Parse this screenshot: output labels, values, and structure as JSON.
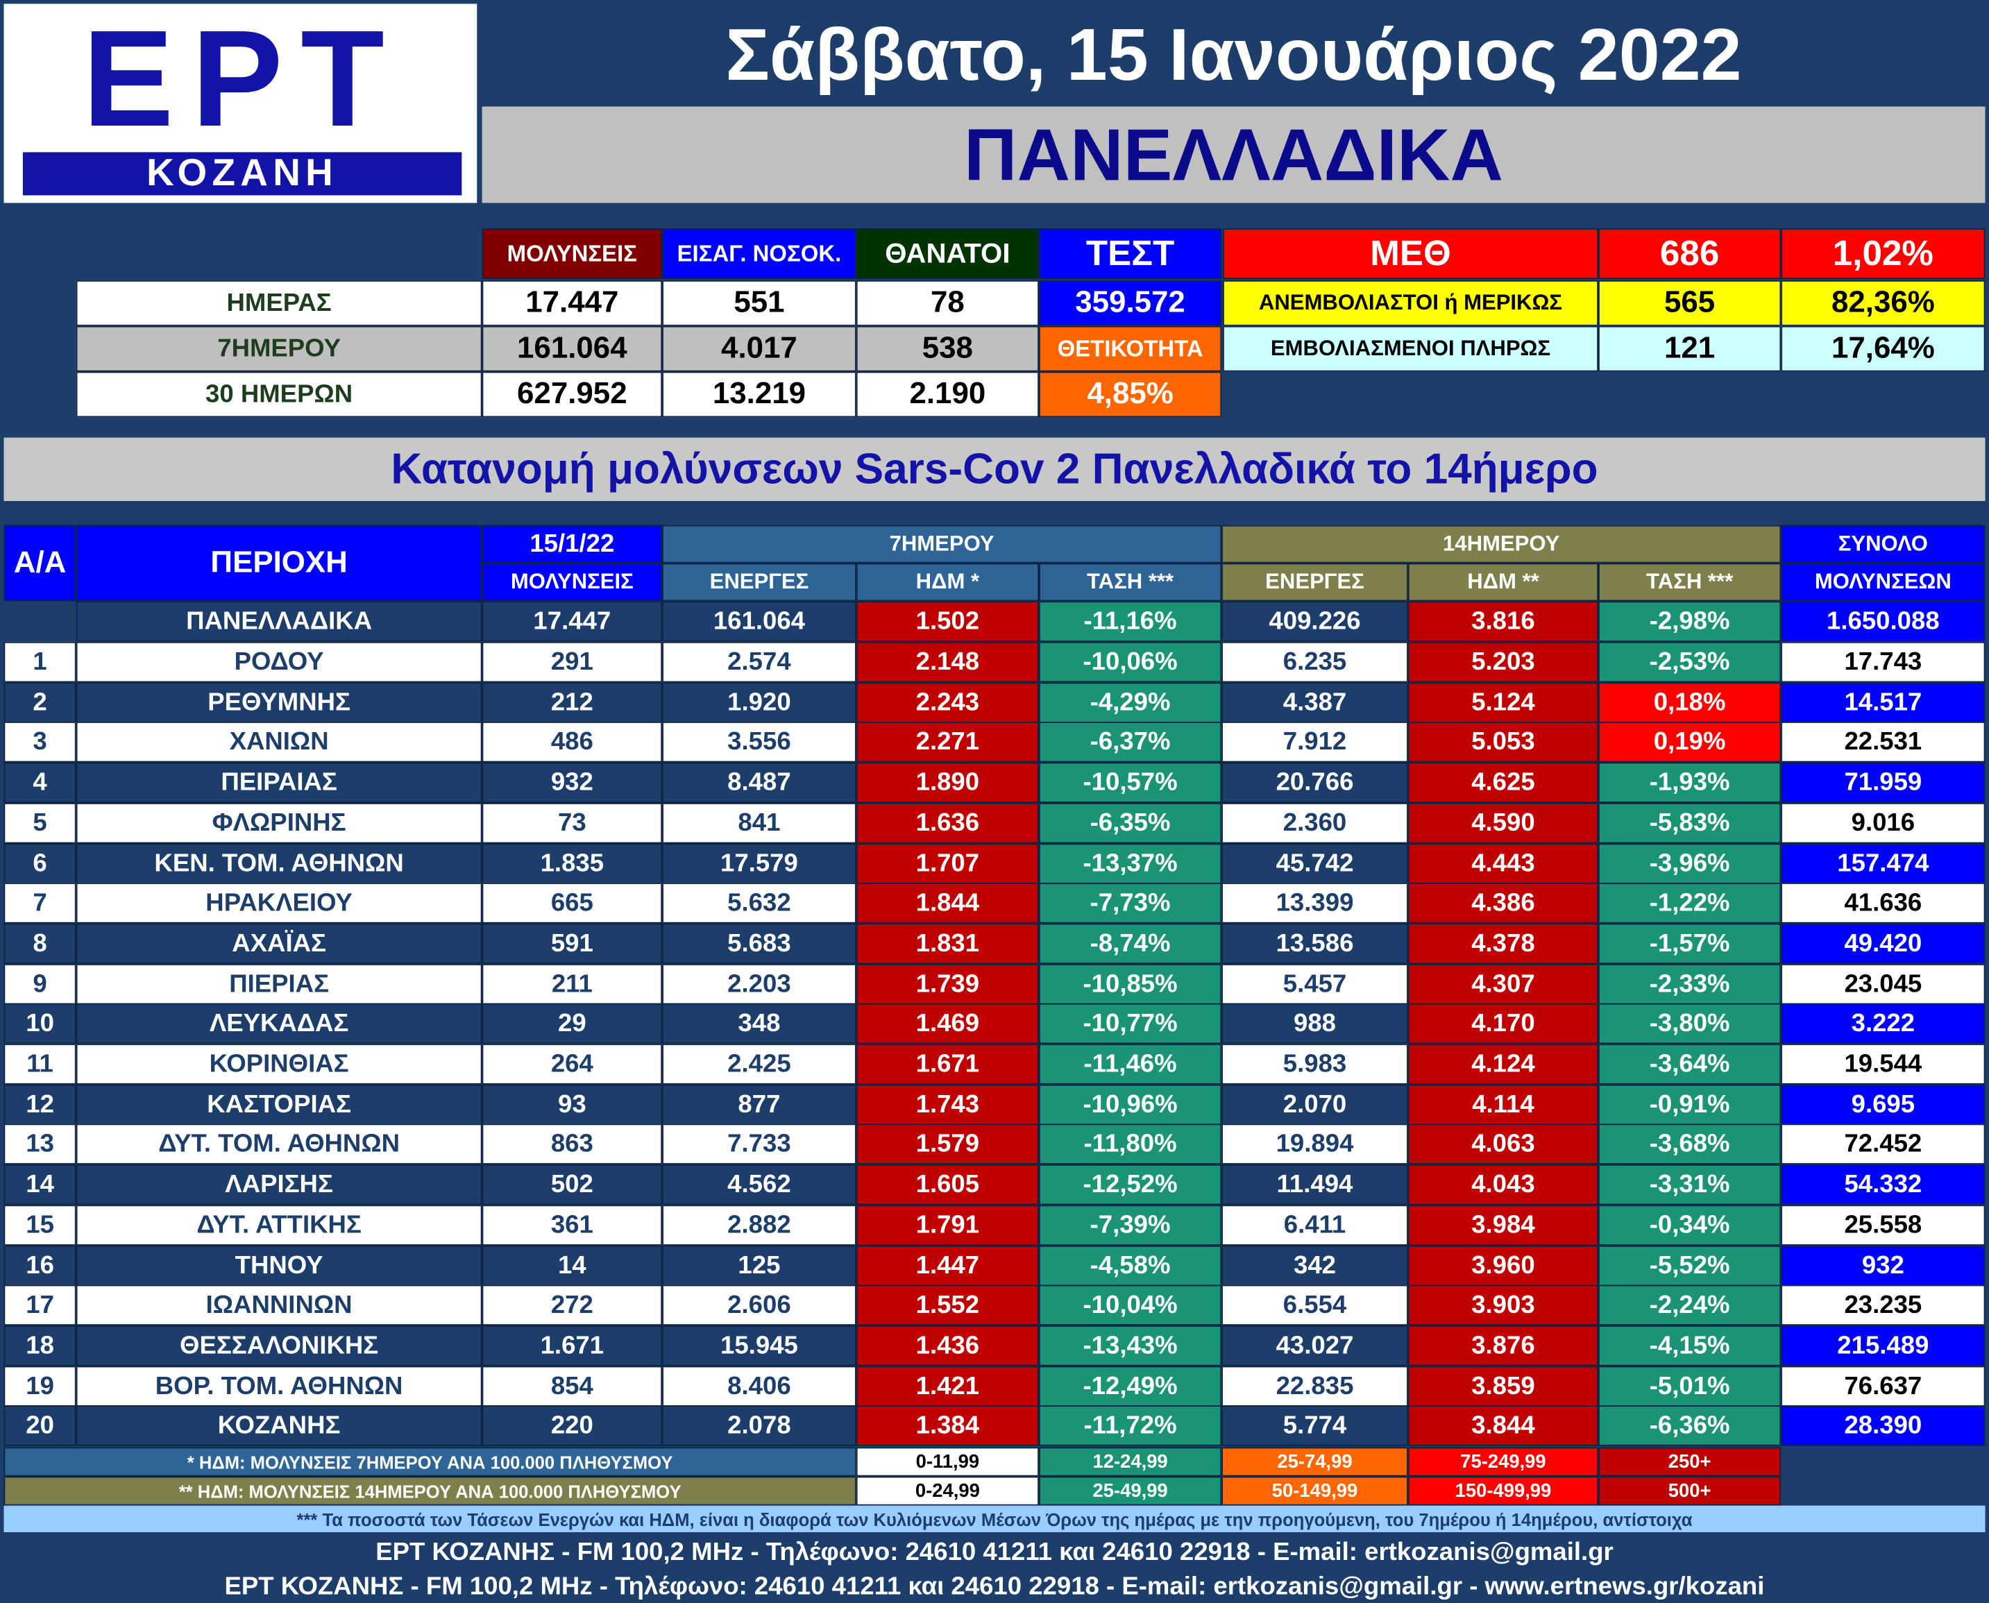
{
  "logo": {
    "name": "ΕΡΤ",
    "sub": "ΚΟΖΑΝΗ"
  },
  "date": "Σάββατο, 15 Ιανουάριος 2022",
  "region_title": "ΠΑΝΕΛΛΑΔΙΚΑ",
  "summary": {
    "headers": {
      "infections": "ΜΟΛΥΝΣΕΙΣ",
      "admissions": "ΕΙΣΑΓ. ΝΟΣΟΚ.",
      "deaths": "ΘΑΝΑΤΟΙ",
      "tests": "ΤΕΣΤ"
    },
    "rows": [
      {
        "label": "ΗΜΕΡΑΣ",
        "infections": "17.447",
        "admissions": "551",
        "deaths": "78"
      },
      {
        "label": "7ΗΜΕΡΟΥ",
        "infections": "161.064",
        "admissions": "4.017",
        "deaths": "538"
      },
      {
        "label": "30 ΗΜΕΡΩΝ",
        "infections": "627.952",
        "admissions": "13.219",
        "deaths": "2.190"
      }
    ],
    "tests_value": "359.572",
    "positivity_label": "ΘΕΤΙΚΟΤΗΤΑ",
    "positivity_value": "4,85%"
  },
  "icu": {
    "label": "ΜΕΘ",
    "total": "686",
    "total_pct": "1,02%",
    "unvaccinated_label": "ΑΝΕΜΒΟΛΙΑΣΤΟΙ ή ΜΕΡΙΚΩΣ",
    "unvaccinated": "565",
    "unvaccinated_pct": "82,36%",
    "vaccinated_label": "ΕΜΒΟΛΙΑΣΜΕΝΟΙ ΠΛΗΡΩΣ",
    "vaccinated": "121",
    "vaccinated_pct": "17,64%"
  },
  "section_title": "Κατανομή μολύνσεων Sars-Cov 2 Πανελλαδικά το 14ήμερο",
  "table": {
    "headers": {
      "aa": "Α/Α",
      "region": "ΠΕΡΙΟΧΗ",
      "date": "15/1/22",
      "infections": "ΜΟΛΥΝΣΕΙΣ",
      "week": "7ΗΜΕΡΟΥ",
      "fortnight": "14ΗΜΕΡΟΥ",
      "active": "ΕΝΕΡΓΕΣ",
      "hdm7": "ΗΔΜ *",
      "trend": "ΤΑΣΗ ***",
      "hdm14": "ΗΔΜ **",
      "total": "ΣΥΝΟΛΟ",
      "total_sub": "ΜΟΛΥΝΣΕΩΝ"
    },
    "national": {
      "region": "ΠΑΝΕΛΛΑΔΙΚΑ",
      "infections": "17.447",
      "active7": "161.064",
      "hdm7": "1.502",
      "trend7": "-11,16%",
      "active14": "409.226",
      "hdm14": "3.816",
      "trend14": "-2,98%",
      "total": "1.650.088"
    },
    "rows": [
      {
        "aa": "1",
        "region": "ΡΟΔΟΥ",
        "infections": "291",
        "active7": "2.574",
        "hdm7": "2.148",
        "trend7": "-10,06%",
        "active14": "6.235",
        "hdm14": "5.203",
        "trend14": "-2,53%",
        "total": "17.743"
      },
      {
        "aa": "2",
        "region": "ΡΕΘΥΜΝΗΣ",
        "infections": "212",
        "active7": "1.920",
        "hdm7": "2.243",
        "trend7": "-4,29%",
        "active14": "4.387",
        "hdm14": "5.124",
        "trend14": "0,18%",
        "total": "14.517"
      },
      {
        "aa": "3",
        "region": "ΧΑΝΙΩΝ",
        "infections": "486",
        "active7": "3.556",
        "hdm7": "2.271",
        "trend7": "-6,37%",
        "active14": "7.912",
        "hdm14": "5.053",
        "trend14": "0,19%",
        "total": "22.531"
      },
      {
        "aa": "4",
        "region": "ΠΕΙΡΑΙΑΣ",
        "infections": "932",
        "active7": "8.487",
        "hdm7": "1.890",
        "trend7": "-10,57%",
        "active14": "20.766",
        "hdm14": "4.625",
        "trend14": "-1,93%",
        "total": "71.959"
      },
      {
        "aa": "5",
        "region": "ΦΛΩΡΙΝΗΣ",
        "infections": "73",
        "active7": "841",
        "hdm7": "1.636",
        "trend7": "-6,35%",
        "active14": "2.360",
        "hdm14": "4.590",
        "trend14": "-5,83%",
        "total": "9.016"
      },
      {
        "aa": "6",
        "region": "ΚΕΝ. ΤΟΜ. ΑΘΗΝΩΝ",
        "infections": "1.835",
        "active7": "17.579",
        "hdm7": "1.707",
        "trend7": "-13,37%",
        "active14": "45.742",
        "hdm14": "4.443",
        "trend14": "-3,96%",
        "total": "157.474"
      },
      {
        "aa": "7",
        "region": "ΗΡΑΚΛΕΙΟΥ",
        "infections": "665",
        "active7": "5.632",
        "hdm7": "1.844",
        "trend7": "-7,73%",
        "active14": "13.399",
        "hdm14": "4.386",
        "trend14": "-1,22%",
        "total": "41.636"
      },
      {
        "aa": "8",
        "region": "ΑΧΑΪΑΣ",
        "infections": "591",
        "active7": "5.683",
        "hdm7": "1.831",
        "trend7": "-8,74%",
        "active14": "13.586",
        "hdm14": "4.378",
        "trend14": "-1,57%",
        "total": "49.420"
      },
      {
        "aa": "9",
        "region": "ΠΙΕΡΙΑΣ",
        "infections": "211",
        "active7": "2.203",
        "hdm7": "1.739",
        "trend7": "-10,85%",
        "active14": "5.457",
        "hdm14": "4.307",
        "trend14": "-2,33%",
        "total": "23.045"
      },
      {
        "aa": "10",
        "region": "ΛΕΥΚΑΔΑΣ",
        "infections": "29",
        "active7": "348",
        "hdm7": "1.469",
        "trend7": "-10,77%",
        "active14": "988",
        "hdm14": "4.170",
        "trend14": "-3,80%",
        "total": "3.222"
      },
      {
        "aa": "11",
        "region": "ΚΟΡΙΝΘΙΑΣ",
        "infections": "264",
        "active7": "2.425",
        "hdm7": "1.671",
        "trend7": "-11,46%",
        "active14": "5.983",
        "hdm14": "4.124",
        "trend14": "-3,64%",
        "total": "19.544"
      },
      {
        "aa": "12",
        "region": "ΚΑΣΤΟΡΙΑΣ",
        "infections": "93",
        "active7": "877",
        "hdm7": "1.743",
        "trend7": "-10,96%",
        "active14": "2.070",
        "hdm14": "4.114",
        "trend14": "-0,91%",
        "total": "9.695"
      },
      {
        "aa": "13",
        "region": "ΔΥΤ. ΤΟΜ. ΑΘΗΝΩΝ",
        "infections": "863",
        "active7": "7.733",
        "hdm7": "1.579",
        "trend7": "-11,80%",
        "active14": "19.894",
        "hdm14": "4.063",
        "trend14": "-3,68%",
        "total": "72.452"
      },
      {
        "aa": "14",
        "region": "ΛΑΡΙΣΗΣ",
        "infections": "502",
        "active7": "4.562",
        "hdm7": "1.605",
        "trend7": "-12,52%",
        "active14": "11.494",
        "hdm14": "4.043",
        "trend14": "-3,31%",
        "total": "54.332"
      },
      {
        "aa": "15",
        "region": "ΔΥΤ. ΑΤΤΙΚΗΣ",
        "infections": "361",
        "active7": "2.882",
        "hdm7": "1.791",
        "trend7": "-7,39%",
        "active14": "6.411",
        "hdm14": "3.984",
        "trend14": "-0,34%",
        "total": "25.558"
      },
      {
        "aa": "16",
        "region": "ΤΗΝΟΥ",
        "infections": "14",
        "active7": "125",
        "hdm7": "1.447",
        "trend7": "-4,58%",
        "active14": "342",
        "hdm14": "3.960",
        "trend14": "-5,52%",
        "total": "932"
      },
      {
        "aa": "17",
        "region": "ΙΩΑΝΝΙΝΩΝ",
        "infections": "272",
        "active7": "2.606",
        "hdm7": "1.552",
        "trend7": "-10,04%",
        "active14": "6.554",
        "hdm14": "3.903",
        "trend14": "-2,24%",
        "total": "23.235"
      },
      {
        "aa": "18",
        "region": "ΘΕΣΣΑΛΟΝΙΚΗΣ",
        "infections": "1.671",
        "active7": "15.945",
        "hdm7": "1.436",
        "trend7": "-13,43%",
        "active14": "43.027",
        "hdm14": "3.876",
        "trend14": "-4,15%",
        "total": "215.489"
      },
      {
        "aa": "19",
        "region": "ΒΟΡ. ΤΟΜ. ΑΘΗΝΩΝ",
        "infections": "854",
        "active7": "8.406",
        "hdm7": "1.421",
        "trend7": "-12,49%",
        "active14": "22.835",
        "hdm14": "3.859",
        "trend14": "-5,01%",
        "total": "76.637"
      },
      {
        "aa": "20",
        "region": "ΚΟΖΑΝΗΣ",
        "infections": "220",
        "active7": "2.078",
        "hdm7": "1.384",
        "trend7": "-11,72%",
        "active14": "5.774",
        "hdm14": "3.844",
        "trend14": "-6,36%",
        "total": "28.390"
      }
    ]
  },
  "legend": {
    "note7": "* ΗΔΜ: ΜΟΛΥΝΣΕΙΣ 7ΗΜΕΡΟΥ ΑΝΑ 100.000 ΠΛΗΘΥΣΜΟΥ",
    "note14": "** ΗΔΜ: ΜΟΛΥΝΣΕΙΣ 14ΗΜΕΡΟΥ ΑΝΑ 100.000 ΠΛΗΘΥΣΜΟΥ",
    "ranges7": [
      "0-11,99",
      "12-24,99",
      "25-74,99",
      "75-249,99",
      "250+"
    ],
    "ranges14": [
      "0-24,99",
      "25-49,99",
      "50-149,99",
      "150-499,99",
      "500+"
    ],
    "colors": [
      "#ffffff",
      "#1a9474",
      "#ff6600",
      "#ff0000",
      "#c00000"
    ]
  },
  "footnote": "*** Τα ποσοστά των Τάσεων Ενεργών και ΗΔΜ, είναι η διαφορά των Κυλιόμενων Μέσων Όρων της ημέρας με την προηγούμενη, του 7ημέρου ή 14ημέρου, αντίστοιχα",
  "footer1": "ΕΡΤ ΚΟΖΑΝΗΣ - FM 100,2 MHz - Τηλέφωνο:  24610 41211 και 24610 22918 - E-mail: ertkozanis@gmail.gr",
  "footer2": "ΕΡΤ ΚΟΖΑΝΗΣ - FM 100,2 MHz - Τηλέφωνο:  24610 41211 και 24610 22918 - E-mail: ertkozanis@gmail.gr - www.ertnews.gr/kozani",
  "colors": {
    "background": "#1d3d6b",
    "hdm": "#c00000",
    "trend": "#1a9474",
    "trend_positive": "#ff0000",
    "accent": "#1313a8"
  }
}
